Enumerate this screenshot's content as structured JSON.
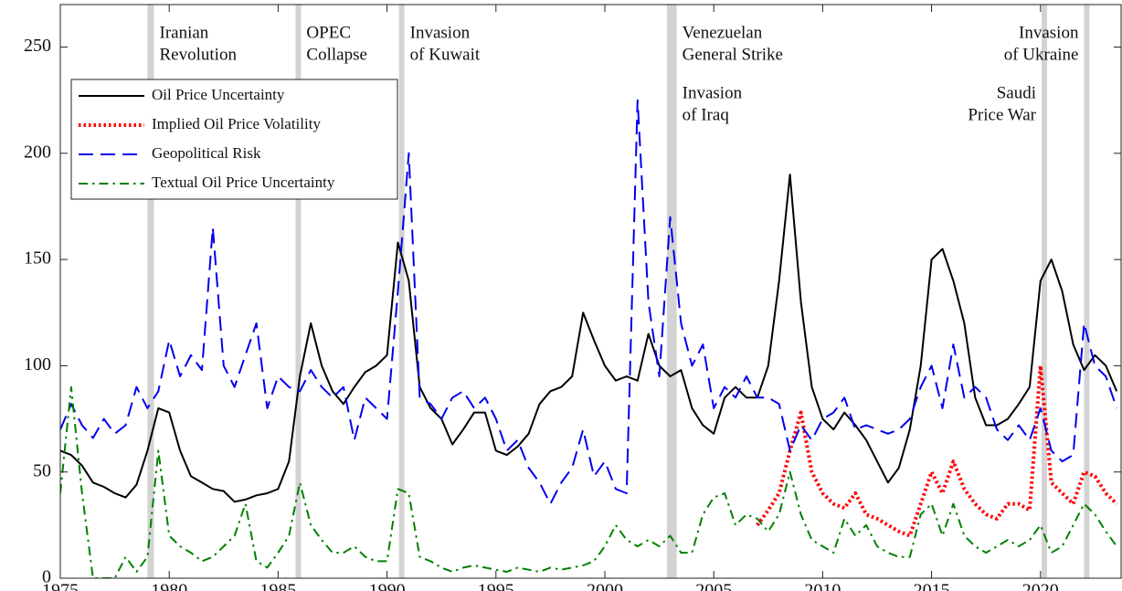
{
  "chart_data": {
    "type": "line",
    "x": [
      1975,
      1975.5,
      1976,
      1976.5,
      1977,
      1977.5,
      1978,
      1978.5,
      1979,
      1979.5,
      1980,
      1980.5,
      1981,
      1981.5,
      1982,
      1982.5,
      1983,
      1983.5,
      1984,
      1984.5,
      1985,
      1985.5,
      1986,
      1986.5,
      1987,
      1987.5,
      1988,
      1988.5,
      1989,
      1989.5,
      1990,
      1990.5,
      1991,
      1991.5,
      1992,
      1992.5,
      1993,
      1993.5,
      1994,
      1994.5,
      1995,
      1995.5,
      1996,
      1996.5,
      1997,
      1997.5,
      1998,
      1998.5,
      1999,
      1999.5,
      2000,
      2000.5,
      2001,
      2001.5,
      2002,
      2002.5,
      2003,
      2003.5,
      2004,
      2004.5,
      2005,
      2005.5,
      2006,
      2006.5,
      2007,
      2007.5,
      2008,
      2008.5,
      2009,
      2009.5,
      2010,
      2010.5,
      2011,
      2011.5,
      2012,
      2012.5,
      2013,
      2013.5,
      2014,
      2014.5,
      2015,
      2015.5,
      2016,
      2016.5,
      2017,
      2017.5,
      2018,
      2018.5,
      2019,
      2019.5,
      2020,
      2020.5,
      2021,
      2021.5,
      2022,
      2022.5,
      2023,
      2023.5
    ],
    "series": [
      {
        "name": "Oil Price Uncertainty",
        "color": "#000000",
        "dash": "solid",
        "values": [
          60,
          58,
          53,
          45,
          43,
          40,
          38,
          44,
          60,
          80,
          78,
          60,
          48,
          45,
          42,
          41,
          36,
          37,
          39,
          40,
          42,
          55,
          95,
          120,
          100,
          88,
          82,
          90,
          97,
          100,
          105,
          158,
          140,
          90,
          80,
          75,
          63,
          70,
          78,
          78,
          60,
          58,
          62,
          68,
          82,
          88,
          90,
          95,
          125,
          112,
          100,
          93,
          95,
          93,
          115,
          100,
          95,
          98,
          80,
          72,
          68,
          85,
          90,
          85,
          85,
          100,
          140,
          190,
          130,
          90,
          75,
          70,
          78,
          72,
          65,
          55,
          45,
          52,
          70,
          100,
          150,
          155,
          140,
          120,
          85,
          72,
          72,
          75,
          82,
          90,
          140,
          150,
          135,
          110,
          98,
          105,
          100,
          88
        ]
      },
      {
        "name": "Implied Oil Price Volatility",
        "color": "#ff0000",
        "dash": "dotted",
        "values": [
          null,
          null,
          null,
          null,
          null,
          null,
          null,
          null,
          null,
          null,
          null,
          null,
          null,
          null,
          null,
          null,
          null,
          null,
          null,
          null,
          null,
          null,
          null,
          null,
          null,
          null,
          null,
          null,
          null,
          null,
          null,
          null,
          null,
          null,
          null,
          null,
          null,
          null,
          null,
          null,
          null,
          null,
          null,
          null,
          null,
          null,
          null,
          null,
          null,
          null,
          null,
          null,
          null,
          null,
          null,
          null,
          null,
          null,
          null,
          null,
          null,
          null,
          null,
          null,
          25,
          32,
          40,
          60,
          78,
          50,
          40,
          35,
          33,
          40,
          30,
          28,
          25,
          22,
          20,
          35,
          50,
          40,
          55,
          42,
          35,
          30,
          28,
          35,
          35,
          32,
          100,
          45,
          40,
          35,
          50,
          48,
          40,
          35
        ]
      },
      {
        "name": "Geopolitical Risk",
        "color": "#0000ee",
        "dash": "dashed",
        "values": [
          70,
          82,
          72,
          66,
          75,
          68,
          72,
          90,
          80,
          88,
          112,
          95,
          105,
          98,
          165,
          100,
          90,
          105,
          120,
          80,
          95,
          90,
          88,
          98,
          90,
          85,
          90,
          65,
          85,
          80,
          75,
          135,
          200,
          85,
          82,
          75,
          85,
          88,
          80,
          85,
          75,
          60,
          65,
          52,
          45,
          35,
          45,
          52,
          70,
          48,
          55,
          42,
          40,
          225,
          130,
          95,
          170,
          120,
          100,
          110,
          80,
          90,
          85,
          95,
          85,
          85,
          82,
          60,
          72,
          65,
          75,
          78,
          85,
          70,
          72,
          70,
          68,
          70,
          75,
          90,
          100,
          80,
          110,
          85,
          90,
          85,
          70,
          65,
          72,
          65,
          80,
          60,
          55,
          58,
          120,
          100,
          95,
          80
        ]
      },
      {
        "name": "Textual Oil Price Uncertainty",
        "color": "#008000",
        "dash": "dashdot",
        "values": [
          40,
          90,
          40,
          0,
          0,
          0,
          10,
          3,
          10,
          60,
          20,
          15,
          12,
          8,
          10,
          15,
          20,
          35,
          8,
          5,
          12,
          20,
          45,
          25,
          18,
          12,
          12,
          15,
          10,
          8,
          8,
          42,
          40,
          10,
          8,
          5,
          3,
          5,
          6,
          5,
          4,
          3,
          5,
          4,
          3,
          5,
          4,
          5,
          6,
          8,
          15,
          25,
          18,
          15,
          18,
          15,
          20,
          12,
          12,
          30,
          38,
          40,
          25,
          30,
          28,
          22,
          30,
          50,
          30,
          18,
          15,
          12,
          28,
          20,
          25,
          15,
          12,
          10,
          10,
          30,
          35,
          20,
          35,
          20,
          15,
          12,
          15,
          18,
          15,
          18,
          25,
          12,
          15,
          25,
          35,
          30,
          22,
          15
        ]
      }
    ],
    "events": [
      {
        "span": [
          1979.0,
          1979.3
        ],
        "labels": [
          [
            "Iranian",
            "Revolution"
          ]
        ]
      },
      {
        "span": [
          1985.8,
          1986.05
        ],
        "labels": [
          [
            "OPEC",
            "Collapse"
          ]
        ]
      },
      {
        "span": [
          1990.55,
          1990.8
        ],
        "labels": [
          [
            "Invasion",
            "of Kuwait"
          ]
        ]
      },
      {
        "span": [
          2002.85,
          2003.3
        ],
        "labels": [
          [
            "Venezuelan",
            "General Strike"
          ],
          [
            "Invasion",
            "of Iraq"
          ]
        ]
      },
      {
        "span": [
          2020.05,
          2020.3
        ],
        "labels": [
          [
            "Saudi",
            "Price War"
          ]
        ]
      },
      {
        "span": [
          2022.0,
          2022.25
        ],
        "labels": [
          [
            "Invasion",
            "of Ukraine"
          ]
        ]
      }
    ],
    "xlim": [
      1975,
      2023.7
    ],
    "xticks": [
      1975,
      1980,
      1985,
      1990,
      1995,
      2000,
      2005,
      2010,
      2015,
      2020
    ],
    "ylim": [
      0,
      270
    ],
    "yticks": [
      0,
      50,
      100,
      150,
      200,
      250
    ],
    "legend": "upper left"
  }
}
